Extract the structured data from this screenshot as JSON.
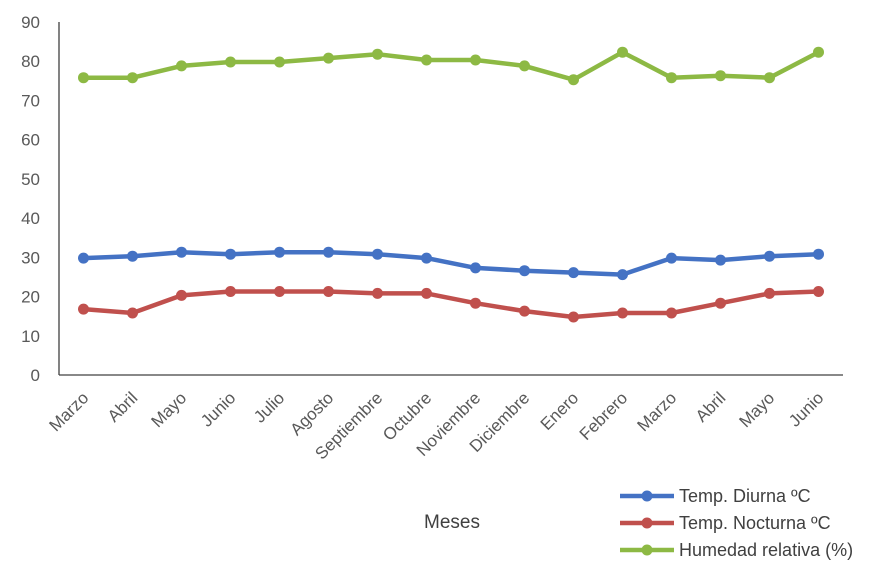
{
  "chart_data": {
    "type": "line",
    "xlabel": "Meses",
    "ylabel": "",
    "ylim": [
      0,
      90
    ],
    "yticks": [
      "0",
      "10",
      "20",
      "30",
      "40",
      "50",
      "60",
      "70",
      "80",
      "90"
    ],
    "categories": [
      "Marzo",
      "Abril",
      "Mayo",
      "Junio",
      "Julio",
      "Agosto",
      "Septiembre",
      "Octubre",
      "Noviembre",
      "Diciembre",
      "Enero",
      "Febrero",
      "Marzo",
      "Abril",
      "Mayo",
      "Junio"
    ],
    "legend_position": "bottom-right",
    "grid": false,
    "series": [
      {
        "name": "Temp. Diurna ºC",
        "color": "#4472C4",
        "values": [
          29.8,
          30.3,
          31.3,
          30.8,
          31.3,
          31.3,
          30.8,
          29.8,
          27.3,
          26.6,
          26.1,
          25.6,
          29.8,
          29.3,
          30.3,
          30.8
        ]
      },
      {
        "name": "Temp.  Nocturna ºC",
        "color": "#C0504D",
        "values": [
          16.8,
          15.8,
          20.3,
          21.3,
          21.3,
          21.3,
          20.8,
          20.8,
          18.3,
          16.3,
          14.8,
          15.8,
          15.8,
          18.3,
          20.8,
          21.3
        ]
      },
      {
        "name": "Humedad relativa (%)",
        "color": "#8DB944",
        "values": [
          75.8,
          75.8,
          78.8,
          79.8,
          79.8,
          80.8,
          81.8,
          80.3,
          80.3,
          78.8,
          75.3,
          82.3,
          75.8,
          76.3,
          75.8,
          82.3
        ]
      }
    ]
  }
}
